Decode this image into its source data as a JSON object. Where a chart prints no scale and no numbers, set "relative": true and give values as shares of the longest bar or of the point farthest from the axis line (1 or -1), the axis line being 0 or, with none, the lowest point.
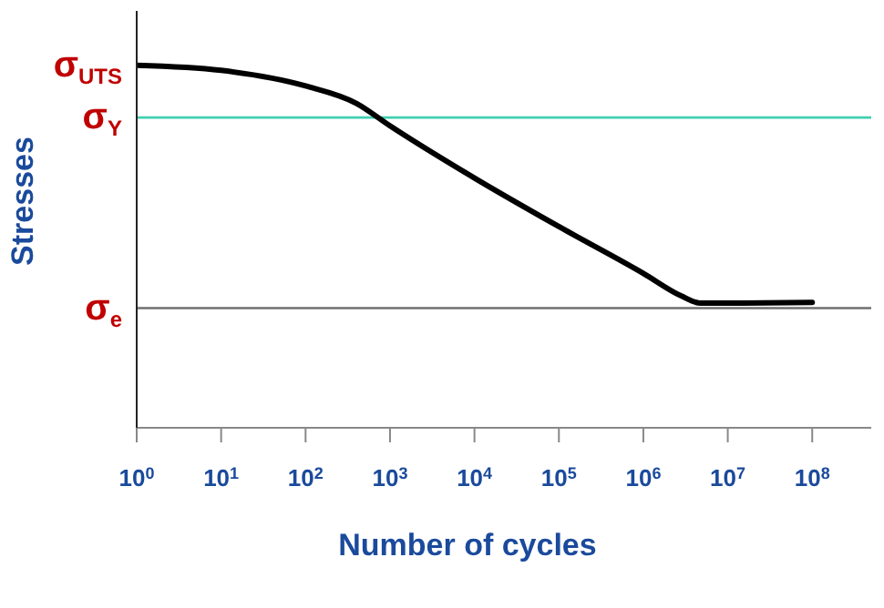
{
  "chart_data": {
    "type": "line",
    "relative": true,
    "xlabel": "Number of cycles",
    "ylabel": "Stresses",
    "log": "x",
    "x": [
      1,
      10,
      100,
      400,
      1000,
      10000,
      100000,
      1000000,
      2800000,
      4700000,
      10000000,
      100000000
    ],
    "series": [
      {
        "color": "#000000",
        "values": [
          1.0,
          0.986,
          0.943,
          0.895,
          0.833,
          0.689,
          0.555,
          0.426,
          0.364,
          0.344,
          0.344,
          0.346
        ]
      }
    ],
    "xlim": [
      1,
      500000000
    ],
    "xticks": [
      {
        "value": 1,
        "label": "10$^{0}$"
      },
      {
        "value": 10,
        "label": "10$^{1}$"
      },
      {
        "value": 100,
        "label": "10$^{2}$"
      },
      {
        "value": 1000,
        "label": "10$^{3}$"
      },
      {
        "value": 10000,
        "label": "10$^{4}$"
      },
      {
        "value": 100000,
        "label": "10$^{5}$"
      },
      {
        "value": 1000000,
        "label": "10$^{6}$"
      },
      {
        "value": 10000000,
        "label": "10$^{7}$"
      },
      {
        "value": 100000000,
        "label": "10$^{8}$"
      }
    ],
    "annotations": [
      {
        "text": "σ$_{UTS}$",
        "x": 1,
        "y": 1.0
      }
    ],
    "ref_lines": [
      {
        "axis": "y",
        "value": 0.856,
        "label": "σ$_{Y}$",
        "color": "#40d0b0",
        "line_style": "solid"
      },
      {
        "axis": "y",
        "value": 0.33,
        "label": "σ$_{e}$",
        "color": "#707070",
        "line_style": "solid"
      }
    ],
    "marker": "none",
    "line_style": "solid"
  }
}
